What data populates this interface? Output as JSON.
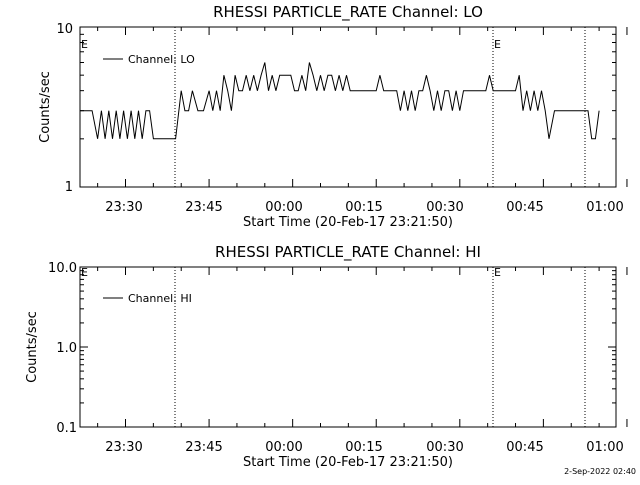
{
  "footer": {
    "timestamp": "2-Sep-2022 02:40"
  },
  "chart_data": [
    {
      "type": "line",
      "title": "RHESSI PARTICLE_RATE Channel: LO",
      "xlabel": "Start Time (20-Feb-17 23:21:50)",
      "ylabel": "Counts/sec",
      "y_scale": "log",
      "ylim": [
        1,
        10
      ],
      "y_ticks": [
        "1",
        "10"
      ],
      "x_ticks": [
        "23:30",
        "23:45",
        "00:00",
        "00:15",
        "00:30",
        "00:45",
        "01:00"
      ],
      "flag_label": "E",
      "grid": false,
      "legend_position": "top-left",
      "series": [
        {
          "name": "Channel: LO",
          "color": "#000000",
          "x": [
            "23:21:50",
            "23:24:00",
            "23:25:00",
            "23:25:40",
            "23:26:20",
            "23:27:00",
            "23:27:40",
            "23:28:20",
            "23:29:00",
            "23:29:40",
            "23:30:20",
            "23:31:00",
            "23:31:40",
            "23:32:20",
            "23:33:00",
            "23:33:40",
            "23:34:20",
            "23:35:00",
            "23:35:40",
            "23:36:20",
            "23:37:00",
            "23:38:00",
            "23:39:00",
            "23:40:00",
            "23:40:40",
            "23:41:20",
            "23:42:00",
            "23:43:00",
            "23:44:00",
            "23:45:00",
            "23:45:40",
            "23:46:20",
            "23:47:00",
            "23:47:40",
            "23:48:20",
            "23:49:00",
            "23:49:40",
            "23:50:20",
            "23:51:00",
            "23:51:40",
            "23:52:20",
            "23:53:00",
            "23:53:40",
            "23:54:20",
            "23:55:00",
            "23:55:40",
            "23:56:20",
            "23:57:00",
            "23:57:40",
            "23:58:20",
            "23:59:00",
            "23:59:40",
            "00:00:20",
            "00:01:00",
            "00:01:40",
            "00:02:20",
            "00:03:00",
            "00:03:40",
            "00:04:20",
            "00:05:00",
            "00:05:40",
            "00:06:20",
            "00:07:00",
            "00:07:40",
            "00:08:20",
            "00:09:00",
            "00:09:40",
            "00:10:20",
            "00:11:00",
            "00:12:00",
            "00:13:00",
            "00:13:40",
            "00:14:20",
            "00:15:00",
            "00:15:40",
            "00:16:20",
            "00:17:00",
            "00:18:00",
            "00:18:40",
            "00:19:20",
            "00:20:00",
            "00:20:40",
            "00:21:20",
            "00:22:00",
            "00:22:40",
            "00:23:20",
            "00:24:00",
            "00:24:40",
            "00:25:20",
            "00:26:00",
            "00:26:40",
            "00:27:20",
            "00:28:00",
            "00:28:40",
            "00:29:20",
            "00:30:00",
            "00:30:40",
            "00:31:20",
            "00:32:00",
            "00:32:40",
            "00:33:20",
            "00:34:00",
            "00:34:40",
            "00:35:20",
            "00:36:00",
            "00:36:40",
            "00:37:20",
            "00:38:00",
            "00:39:00",
            "00:40:00",
            "00:40:40",
            "00:41:20",
            "00:42:00",
            "00:42:40",
            "00:43:20",
            "00:44:00",
            "00:44:40",
            "00:45:20",
            "00:46:00",
            "00:47:00",
            "00:48:00",
            "00:49:00",
            "00:50:00",
            "00:51:00",
            "00:52:00",
            "00:53:00",
            "00:53:40",
            "00:54:20",
            "00:55:00"
          ],
          "values": [
            3,
            3,
            2,
            3,
            2,
            3,
            2,
            3,
            2,
            3,
            2,
            3,
            2,
            3,
            2,
            3,
            3,
            2,
            2,
            2,
            2,
            2,
            2,
            4,
            3,
            3,
            4,
            3,
            3,
            4,
            3,
            4,
            3,
            5,
            4,
            3,
            5,
            4,
            4,
            5,
            4,
            5,
            4,
            5,
            6,
            4,
            5,
            4,
            5,
            5,
            5,
            5,
            4,
            4,
            5,
            4,
            6,
            5,
            4,
            5,
            4,
            5,
            5,
            4,
            5,
            4,
            5,
            4,
            4,
            4,
            4,
            4,
            4,
            4,
            5,
            4,
            4,
            4,
            4,
            3,
            4,
            3,
            4,
            3,
            4,
            4,
            5,
            4,
            3,
            4,
            3,
            4,
            4,
            3,
            4,
            3,
            4,
            4,
            4,
            4,
            4,
            4,
            4,
            5,
            4,
            4,
            4,
            4,
            4,
            4,
            5,
            3,
            4,
            3,
            4,
            3,
            4,
            3,
            2,
            3,
            3,
            3,
            3,
            3,
            3,
            3,
            2,
            2,
            3
          ]
        }
      ]
    },
    {
      "type": "line",
      "title": "RHESSI PARTICLE_RATE Channel: HI",
      "xlabel": "Start Time (20-Feb-17 23:21:50)",
      "ylabel": "Counts/sec",
      "y_scale": "log",
      "ylim": [
        0.1,
        10
      ],
      "y_ticks": [
        "0.1",
        "1.0",
        "10.0"
      ],
      "x_ticks": [
        "23:30",
        "23:45",
        "00:00",
        "00:15",
        "00:30",
        "00:45",
        "01:00"
      ],
      "flag_label": "E",
      "grid": false,
      "legend_position": "top-left",
      "series": [
        {
          "name": "Channel: HI",
          "color": "#000000",
          "x": [],
          "values": []
        }
      ]
    }
  ]
}
